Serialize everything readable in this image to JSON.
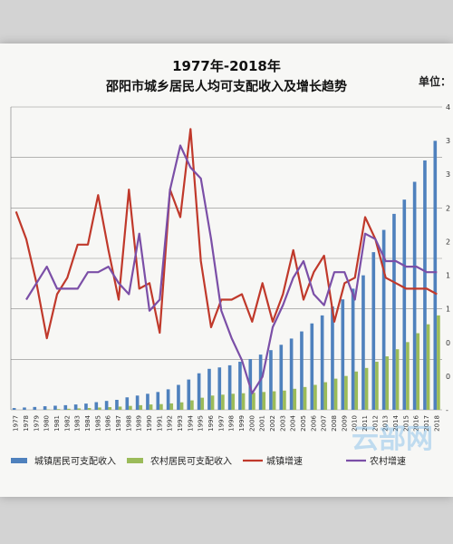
{
  "chart_data": {
    "type": "bar-line-combo",
    "title": "1977年-2018年",
    "subtitle": "邵阳市城乡居民人均可支配收入及增长趋势",
    "unit_label": "单位：",
    "watermark": "云部网",
    "x": [
      "1977",
      "1978",
      "1979",
      "1980",
      "1981",
      "1982",
      "1983",
      "1984",
      "1985",
      "1986",
      "1987",
      "1988",
      "1989",
      "1990",
      "1991",
      "1992",
      "1993",
      "1994",
      "1995",
      "1996",
      "1997",
      "1998",
      "1999",
      "2000",
      "2001",
      "2002",
      "2003",
      "2004",
      "2005",
      "2006",
      "2007",
      "2008",
      "2009",
      "2010",
      "2011",
      "2012",
      "2013",
      "2014",
      "2015",
      "2016",
      "2017",
      "2018"
    ],
    "right_axis_ticks": [
      "4",
      "3",
      "3",
      "2",
      "2",
      "1",
      "1",
      "0",
      "0",
      "-"
    ],
    "bar_series": [
      {
        "name": "城镇居民可支配收入",
        "color": "#4f81bd",
        "values": [
          1,
          1.3,
          1.6,
          2,
          2.3,
          2.6,
          3,
          3.5,
          4.3,
          5,
          5.6,
          7,
          8,
          9,
          10,
          11.5,
          14,
          17,
          20.5,
          23,
          23.8,
          25,
          27,
          28.5,
          31,
          33.5,
          36.5,
          40,
          44,
          48.5,
          53,
          58,
          62,
          68,
          75.5,
          88.5,
          101,
          110,
          118,
          128,
          140,
          151
        ]
      },
      {
        "name": "农村居民可支配收入",
        "color": "#9bbb59",
        "values": [
          0,
          0,
          0,
          0.2,
          0.4,
          0.6,
          0.8,
          1,
          1.3,
          1.5,
          1.8,
          2.2,
          2.6,
          3,
          3.2,
          3.6,
          4.2,
          5.3,
          6.8,
          8,
          8.5,
          9,
          9.3,
          9.6,
          10,
          10.4,
          10.8,
          11.8,
          12.8,
          14,
          15.5,
          17.5,
          19,
          21.5,
          23.5,
          27,
          30,
          34,
          38,
          43,
          48,
          53
        ]
      }
    ],
    "line_series": [
      {
        "name": "城镇增速",
        "color": "#c0392b",
        "values": [
          21,
          16,
          8,
          -2,
          6,
          9,
          15,
          15,
          24,
          14,
          5,
          25,
          7,
          8,
          -1,
          25,
          20,
          36,
          12,
          0,
          5,
          5,
          6,
          1,
          8,
          1,
          6,
          14,
          5,
          10,
          13,
          1,
          8,
          9,
          20,
          16,
          9,
          8,
          7,
          7,
          7,
          6
        ]
      },
      {
        "name": "农村增速",
        "color": "#7b4fa7",
        "values": [
          null,
          5,
          8,
          11,
          7,
          7,
          7,
          10,
          10,
          11,
          8,
          6,
          17,
          3,
          5,
          25,
          33,
          29,
          27,
          16,
          3,
          -2,
          -6,
          -12,
          -9,
          0,
          4,
          9,
          12,
          6,
          4,
          10,
          10,
          5,
          17,
          16,
          12,
          12,
          11,
          11,
          10,
          10
        ]
      }
    ],
    "bar_ylim": [
      0,
      170
    ],
    "line_ylim": [
      -15,
      40
    ],
    "legend_position": "bottom",
    "grid": true
  }
}
